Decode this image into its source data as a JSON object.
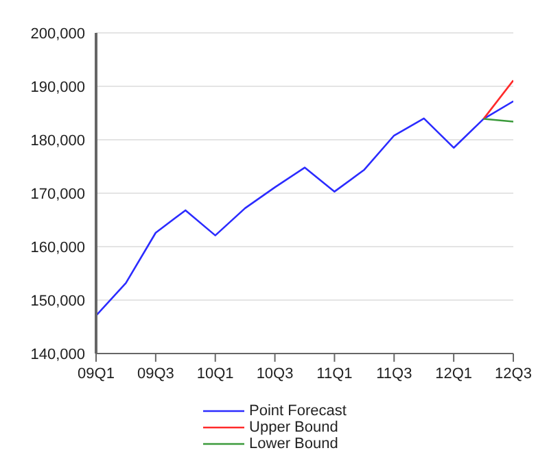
{
  "chart_data": {
    "type": "line",
    "categories": [
      "09Q1",
      null,
      "09Q3",
      null,
      "10Q1",
      null,
      "10Q3",
      null,
      "11Q1",
      null,
      "11Q3",
      null,
      "12Q1",
      null,
      "12Q3"
    ],
    "series": [
      {
        "name": "Point Forecast",
        "color": "#2b2bff",
        "values": [
          147100,
          153200,
          162600,
          166800,
          162100,
          167200,
          171100,
          174800,
          170300,
          174400,
          180800,
          184000,
          178500,
          183900,
          187200
        ]
      },
      {
        "name": "Upper Bound",
        "color": "#ff2a2a",
        "values": [
          null,
          null,
          null,
          null,
          null,
          null,
          null,
          null,
          null,
          null,
          null,
          null,
          null,
          183900,
          191100
        ]
      },
      {
        "name": "Lower Bound",
        "color": "#3a9a3a",
        "values": [
          null,
          null,
          null,
          null,
          null,
          null,
          null,
          null,
          null,
          null,
          null,
          null,
          null,
          183900,
          183400
        ]
      }
    ],
    "ylim": [
      140000,
      200000
    ],
    "yticks": [
      {
        "value": 140000,
        "label": "140,000"
      },
      {
        "value": 150000,
        "label": "150,000"
      },
      {
        "value": 160000,
        "label": "160,000"
      },
      {
        "value": 170000,
        "label": "170,000"
      },
      {
        "value": 180000,
        "label": "180,000"
      },
      {
        "value": 190000,
        "label": "190,000"
      },
      {
        "value": 200000,
        "label": "200,000"
      }
    ],
    "grid": "y",
    "legend": "bottom",
    "marker": "none",
    "line_style": "solid"
  }
}
